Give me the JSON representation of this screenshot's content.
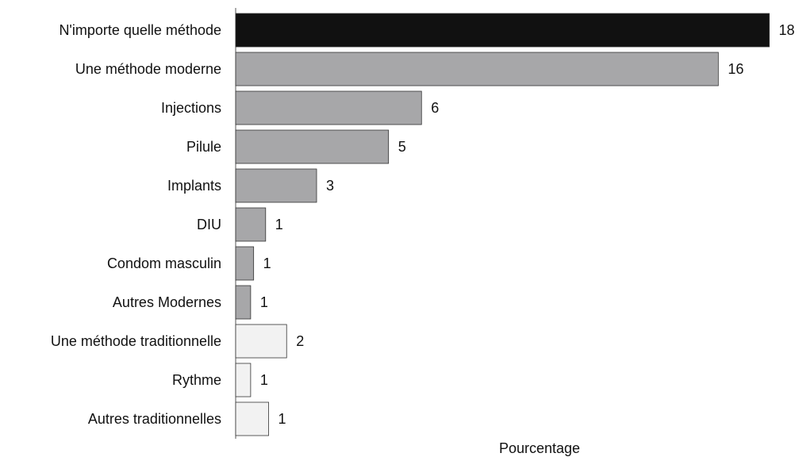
{
  "chart_data": {
    "type": "bar",
    "orientation": "horizontal",
    "x_label": "Pourcentage",
    "categories": [
      "N'importe quelle méthode",
      "Une méthode moderne",
      "Injections",
      "Pilule",
      "Implants",
      "DIU",
      "Condom masculin",
      "Autres Modernes",
      "Une méthode traditionnelle",
      "Rythme",
      "Autres traditionnelles"
    ],
    "values": [
      17.8,
      16.1,
      6.2,
      5.1,
      2.7,
      1.0,
      0.6,
      0.5,
      1.7,
      0.5,
      1.1
    ],
    "value_labels": [
      "18",
      "16",
      "6",
      "5",
      "3",
      "1",
      "1",
      "1",
      "2",
      "1",
      "1"
    ],
    "colors": [
      "#111111",
      "#a7a7a9",
      "#a7a7a9",
      "#a7a7a9",
      "#a7a7a9",
      "#a7a7a9",
      "#a7a7a9",
      "#a7a7a9",
      "#f2f2f2",
      "#f2f2f2",
      "#f2f2f2"
    ],
    "xlim": [
      0,
      18.5
    ]
  }
}
